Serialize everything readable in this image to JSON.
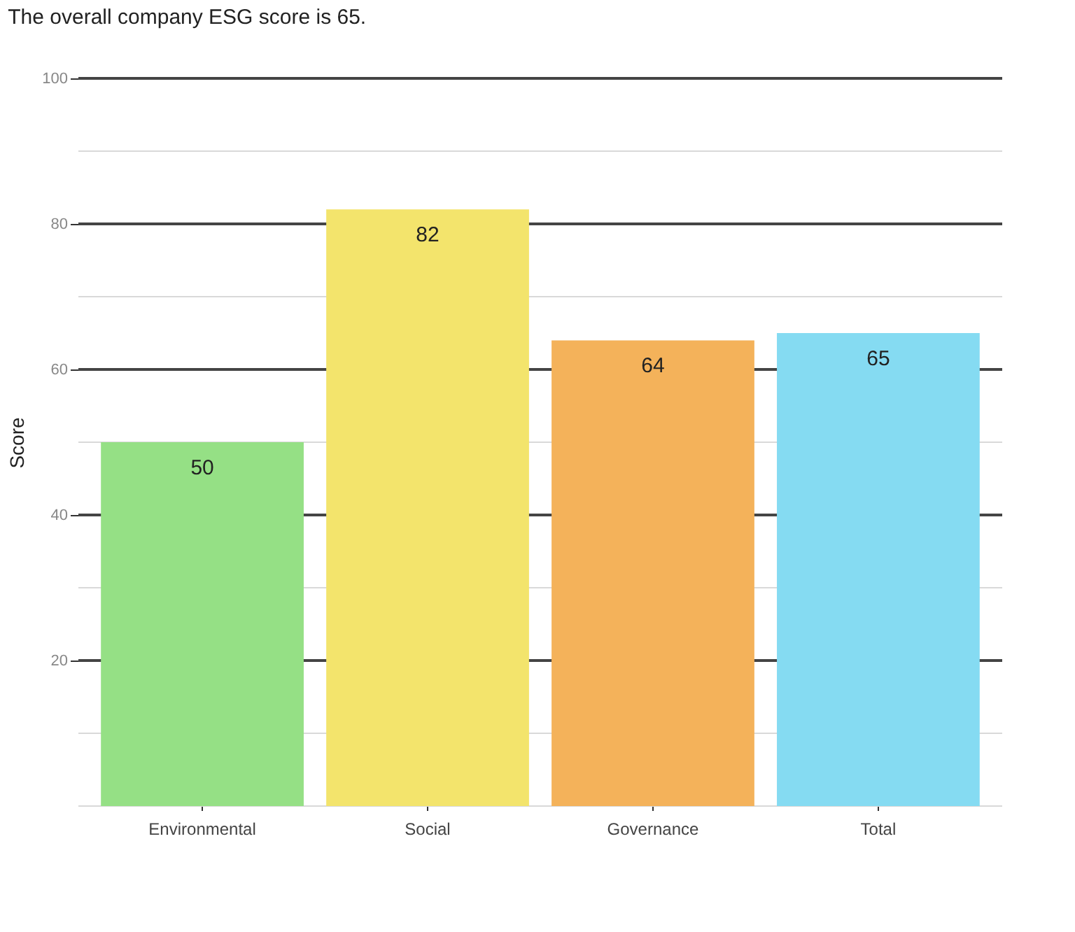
{
  "chart_data": {
    "type": "bar",
    "title": "The overall company ESG score is 65.",
    "ylabel": "Score",
    "categories": [
      "Environmental",
      "Social",
      "Governance",
      "Total"
    ],
    "values": [
      50,
      82,
      64,
      65
    ],
    "colors": [
      "#95e085",
      "#f3e46c",
      "#f4b25a",
      "#85dbf2"
    ],
    "ylim": [
      0,
      100
    ],
    "yticks": [
      {
        "value": 0,
        "label": null
      },
      {
        "value": 10,
        "label": null
      },
      20,
      {
        "value": 30,
        "label": null
      },
      40,
      {
        "value": 50,
        "label": null
      },
      60,
      {
        "value": 70,
        "label": null
      },
      80,
      {
        "value": 90,
        "label": null
      },
      100
    ],
    "grid": "y",
    "data_labels": true
  }
}
